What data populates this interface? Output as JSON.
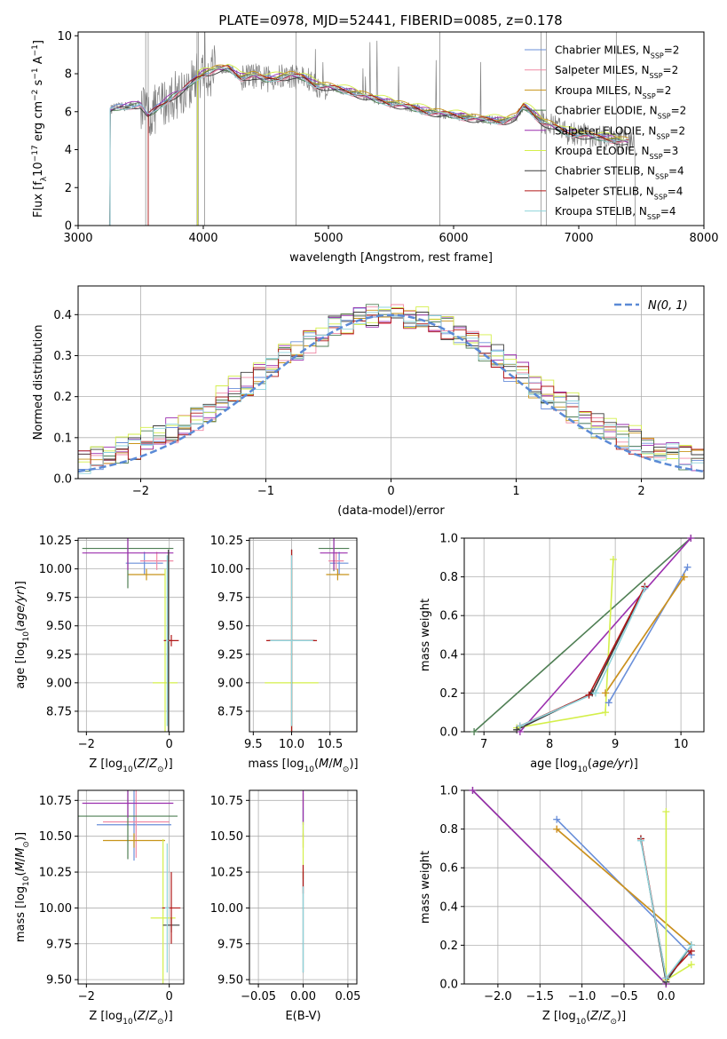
{
  "title": "PLATE=0978, MJD=52441, FIBERID=0085, z=0.178",
  "colors": {
    "chabrier_miles": "#6a8fd9",
    "salpeter_miles": "#f08aa6",
    "kroupa_miles": "#c8941a",
    "chabrier_elodie": "#4f7f54",
    "salpeter_elodie": "#9b2fae",
    "kroupa_elodie": "#d4ef4a",
    "chabrier_stelib": "#3a3a3a",
    "salpeter_stelib": "#b01818",
    "kroupa_stelib": "#8fd4dc",
    "miles_combo": "#f07a3a",
    "data": "#808080",
    "normal": "#5b8ad6",
    "grid": "#b0b0b0"
  },
  "legend": {
    "items": [
      {
        "name": "Chabrier MILES",
        "ssp": "2"
      },
      {
        "name": "Salpeter MILES",
        "ssp": "2"
      },
      {
        "name": "Kroupa MILES",
        "ssp": "2"
      },
      {
        "name": "Chabrier ELODIE",
        "ssp": "2"
      },
      {
        "name": "Salpeter ELODIE",
        "ssp": "2"
      },
      {
        "name": "Kroupa ELODIE",
        "ssp": "3"
      },
      {
        "name": "Chabrier STELIB",
        "ssp": "4"
      },
      {
        "name": "Salpeter STELIB",
        "ssp": "4"
      },
      {
        "name": "Kroupa STELIB",
        "ssp": "4"
      }
    ],
    "normal_label": "N(0, 1)"
  },
  "chart_data": [
    {
      "type": "line",
      "id": "spectrum",
      "xlabel": "wavelength [Angstrom, rest frame]",
      "ylabel": "Flux [fλ 10^-17 erg cm^-2 s^-1 A^-1]",
      "xlim": [
        3000,
        8000
      ],
      "ylim": [
        0,
        10.2
      ],
      "xticks": [
        3000,
        4000,
        5000,
        6000,
        7000,
        8000
      ],
      "yticks": [
        0,
        2,
        4,
        6,
        8,
        10
      ],
      "model_continuum": {
        "x": [
          3250,
          3300,
          3400,
          3500,
          3560,
          3650,
          3750,
          3850,
          3950,
          4000,
          4100,
          4200,
          4300,
          4400,
          4500,
          4600,
          4700,
          4800,
          4900,
          5000,
          5200,
          5400,
          5600,
          5800,
          6000,
          6200,
          6400,
          6500,
          6560,
          6620,
          6700,
          6800,
          6900,
          7000,
          7200,
          7400
        ],
        "y": [
          6.1,
          6.2,
          6.3,
          6.4,
          5.8,
          6.3,
          6.8,
          7.2,
          7.8,
          8.0,
          8.2,
          8.3,
          7.8,
          7.9,
          7.7,
          7.8,
          7.9,
          7.8,
          7.4,
          7.3,
          7.0,
          6.6,
          6.3,
          6.0,
          5.8,
          5.6,
          5.5,
          5.7,
          6.3,
          6.0,
          5.5,
          5.2,
          4.9,
          4.8,
          4.6,
          4.4
        ]
      }
    },
    {
      "type": "line",
      "id": "residuals",
      "xlabel": "(data-model)/error",
      "ylabel": "Normed distribution",
      "xlim": [
        -2.5,
        2.5
      ],
      "ylim": [
        0,
        0.47
      ],
      "xticks": [
        -2,
        -1,
        0,
        1,
        2
      ],
      "yticks": [
        0.0,
        0.1,
        0.2,
        0.3,
        0.4
      ],
      "bin_width": 0.1,
      "bin_start": -2.5
    },
    {
      "type": "scatter",
      "id": "age_vs_Z",
      "xlabel": "Z [log10(Z/Z⊙)]",
      "ylabel": "age [log10(age/yr)]",
      "xlim": [
        -2.2,
        0.35
      ],
      "ylim": [
        8.57,
        10.27
      ],
      "xticks": [
        -2,
        0
      ],
      "yticks": [
        8.75,
        9.0,
        9.25,
        9.5,
        9.75,
        10.0,
        10.25
      ],
      "points": [
        {
          "series": "Chabrier MILES",
          "x": -0.6,
          "y": 10.05,
          "xerr": 0.45,
          "yerr": 0.1
        },
        {
          "series": "Salpeter MILES",
          "x": -0.3,
          "y": 10.07,
          "xerr": 0.4,
          "yerr": 0.08
        },
        {
          "series": "Kroupa MILES",
          "x": -0.55,
          "y": 9.95,
          "xerr": 0.45,
          "yerr": 0.05
        },
        {
          "series": "Chabrier ELODIE",
          "x": -1.0,
          "y": 10.18,
          "xerr": 1.1,
          "yerr": 0.35
        },
        {
          "series": "Salpeter ELODIE",
          "x": -1.0,
          "y": 10.14,
          "xerr": 1.1,
          "yerr": 0.15
        },
        {
          "series": "Kroupa ELODIE",
          "x": -0.1,
          "y": 9.0,
          "xerr": 0.3,
          "yerr": 1.0
        },
        {
          "series": "Chabrier STELIB",
          "x": -0.02,
          "y": 9.37,
          "xerr": 0.05,
          "yerr": 0.8
        },
        {
          "series": "Salpeter STELIB",
          "x": 0.05,
          "y": 9.37,
          "xerr": 0.18,
          "yerr": 0.05
        },
        {
          "series": "Kroupa STELIB",
          "x": -0.05,
          "y": 9.37,
          "xerr": 0.03,
          "yerr": 0.75
        }
      ]
    },
    {
      "type": "scatter",
      "id": "age_vs_mass",
      "xlabel": "mass [log10(M/M⊙)]",
      "ylabel": "",
      "xlim": [
        9.45,
        10.85
      ],
      "ylim": [
        8.57,
        10.27
      ],
      "xticks": [
        9.5,
        10.0,
        10.5
      ],
      "yticks": [
        8.75,
        9.0,
        9.25,
        9.5,
        9.75,
        10.0,
        10.25
      ],
      "points": [
        {
          "series": "Chabrier MILES",
          "x": 10.62,
          "y": 10.05,
          "xerr": 0.12,
          "yerr": 0.1
        },
        {
          "series": "Salpeter MILES",
          "x": 10.58,
          "y": 10.07,
          "xerr": 0.1,
          "yerr": 0.08
        },
        {
          "series": "Kroupa MILES",
          "x": 10.6,
          "y": 9.95,
          "xerr": 0.15,
          "yerr": 0.05
        },
        {
          "series": "Chabrier ELODIE",
          "x": 10.55,
          "y": 10.18,
          "xerr": 0.2,
          "yerr": 0.2
        },
        {
          "series": "Salpeter ELODIE",
          "x": 10.55,
          "y": 10.14,
          "xerr": 0.18,
          "yerr": 0.15
        },
        {
          "series": "Kroupa ELODIE",
          "x": 10.0,
          "y": 9.0,
          "xerr": 0.35,
          "yerr": 1.0
        },
        {
          "series": "Chabrier STELIB",
          "x": 10.0,
          "y": 9.37,
          "xerr": 0.3,
          "yerr": 0.8
        },
        {
          "series": "Salpeter STELIB",
          "x": 10.0,
          "y": 9.37,
          "xerr": 0.33,
          "yerr": 0.8
        },
        {
          "series": "Kroupa STELIB",
          "x": 10.0,
          "y": 9.37,
          "xerr": 0.28,
          "yerr": 0.75
        }
      ]
    },
    {
      "type": "line",
      "id": "weight_vs_age",
      "xlabel": "age [log10(age/yr)]",
      "ylabel": "mass weight",
      "xlim": [
        6.7,
        10.35
      ],
      "ylim": [
        0,
        1.0
      ],
      "xticks": [
        7,
        8,
        9,
        10
      ],
      "yticks": [
        0.0,
        0.2,
        0.4,
        0.6,
        0.8,
        1.0
      ],
      "series": [
        {
          "name": "Chabrier MILES",
          "x": [
            8.9,
            10.1
          ],
          "y": [
            0.15,
            0.85
          ]
        },
        {
          "name": "Salpeter MILES",
          "x": [
            8.85,
            10.05
          ],
          "y": [
            0.2,
            0.8
          ]
        },
        {
          "name": "Kroupa MILES",
          "x": [
            8.85,
            10.05
          ],
          "y": [
            0.2,
            0.8
          ]
        },
        {
          "name": "Chabrier ELODIE",
          "x": [
            6.85,
            10.15
          ],
          "y": [
            0.0,
            1.0
          ]
        },
        {
          "name": "Salpeter ELODIE",
          "x": [
            7.55,
            10.15
          ],
          "y": [
            0.0,
            1.0
          ]
        },
        {
          "name": "Kroupa ELODIE",
          "x": [
            7.5,
            8.85,
            8.97
          ],
          "y": [
            0.02,
            0.1,
            0.89
          ]
        },
        {
          "name": "Chabrier STELIB",
          "x": [
            7.5,
            8.65,
            9.45
          ],
          "y": [
            0.01,
            0.2,
            0.75
          ]
        },
        {
          "name": "Salpeter STELIB",
          "x": [
            7.55,
            8.6,
            9.45
          ],
          "y": [
            0.03,
            0.19,
            0.75
          ]
        },
        {
          "name": "Kroupa STELIB",
          "x": [
            7.55,
            8.7,
            9.45
          ],
          "y": [
            0.03,
            0.2,
            0.74
          ]
        }
      ]
    },
    {
      "type": "scatter",
      "id": "mass_vs_Z",
      "xlabel": "Z [log10(Z/Z⊙)]",
      "ylabel": "mass [log10(M/M⊙)]",
      "xlim": [
        -2.2,
        0.35
      ],
      "ylim": [
        9.47,
        10.82
      ],
      "xticks": [
        -2,
        0
      ],
      "yticks": [
        9.5,
        9.75,
        10.0,
        10.25,
        10.5,
        10.75
      ],
      "points": [
        {
          "series": "Chabrier MILES",
          "x": -0.85,
          "y": 10.58,
          "xerr": 0.9,
          "yerr": 0.25
        },
        {
          "series": "Salpeter MILES",
          "x": -0.8,
          "y": 10.6,
          "xerr": 0.8,
          "yerr": 0.25
        },
        {
          "series": "Kroupa MILES",
          "x": -0.85,
          "y": 10.47,
          "xerr": 0.75,
          "yerr": 0.05
        },
        {
          "series": "Chabrier ELODIE",
          "x": -1.0,
          "y": 10.64,
          "xerr": 1.2,
          "yerr": 0.3
        },
        {
          "series": "Salpeter ELODIE",
          "x": -1.0,
          "y": 10.73,
          "xerr": 1.1,
          "yerr": 0.1
        },
        {
          "series": "Kroupa ELODIE",
          "x": -0.15,
          "y": 9.93,
          "xerr": 0.3,
          "yerr": 0.55
        },
        {
          "series": "Chabrier STELIB",
          "x": 0.05,
          "y": 9.88,
          "xerr": 0.2,
          "yerr": 0.05
        },
        {
          "series": "Salpeter STELIB",
          "x": 0.05,
          "y": 10.0,
          "xerr": 0.22,
          "yerr": 0.25
        },
        {
          "series": "Kroupa STELIB",
          "x": -0.05,
          "y": 10.0,
          "xerr": 0.05,
          "yerr": 0.45
        }
      ]
    },
    {
      "type": "scatter",
      "id": "mass_vs_ebv",
      "xlabel": "E(B-V)",
      "ylabel": "",
      "xlim": [
        -0.06,
        0.06
      ],
      "ylim": [
        9.47,
        10.82
      ],
      "xticks": [
        -0.05,
        0.0,
        0.05
      ],
      "yticks": [
        9.5,
        9.75,
        10.0,
        10.25,
        10.5,
        10.75
      ],
      "points": [
        {
          "series": "Chabrier MILES",
          "x": 0.0,
          "y": 10.6,
          "xerr": 0.0,
          "yerr": 0.1
        },
        {
          "series": "Salpeter MILES",
          "x": 0.0,
          "y": 10.78,
          "xerr": 0.0,
          "yerr": 0.08
        },
        {
          "series": "Kroupa MILES",
          "x": 0.0,
          "y": 10.47,
          "xerr": 0.0,
          "yerr": 0.05
        },
        {
          "series": "Chabrier ELODIE",
          "x": 0.0,
          "y": 10.7,
          "xerr": 0.0,
          "yerr": 0.1
        },
        {
          "series": "Salpeter ELODIE",
          "x": 0.0,
          "y": 10.7,
          "xerr": 0.0,
          "yerr": 0.12
        },
        {
          "series": "Kroupa ELODIE",
          "x": 0.0,
          "y": 10.4,
          "xerr": 0.0,
          "yerr": 0.2
        },
        {
          "series": "Chabrier STELIB",
          "x": 0.0,
          "y": 9.9,
          "xerr": 0.0,
          "yerr": 0.35
        },
        {
          "series": "Salpeter STELIB",
          "x": 0.0,
          "y": 10.2,
          "xerr": 0.0,
          "yerr": 0.1
        },
        {
          "series": "Kroupa STELIB",
          "x": 0.0,
          "y": 9.85,
          "xerr": 0.0,
          "yerr": 0.3
        }
      ]
    },
    {
      "type": "line",
      "id": "weight_vs_Z",
      "xlabel": "Z [log10(Z/Z⊙)]",
      "ylabel": "mass weight",
      "xlim": [
        -2.4,
        0.45
      ],
      "ylim": [
        0,
        1.0
      ],
      "xticks": [
        -2.0,
        -1.5,
        -1.0,
        -0.5,
        0.0
      ],
      "yticks": [
        0.0,
        0.2,
        0.4,
        0.6,
        0.8,
        1.0
      ],
      "series": [
        {
          "name": "Chabrier MILES",
          "x": [
            -1.3,
            0.3
          ],
          "y": [
            0.85,
            0.15
          ]
        },
        {
          "name": "Salpeter MILES",
          "x": [
            -1.3,
            0.3
          ],
          "y": [
            0.8,
            0.2
          ]
        },
        {
          "name": "Kroupa MILES",
          "x": [
            -1.3,
            0.3
          ],
          "y": [
            0.8,
            0.2
          ]
        },
        {
          "name": "Chabrier ELODIE",
          "x": [
            -2.3,
            0.0
          ],
          "y": [
            1.0,
            0.0
          ]
        },
        {
          "name": "Salpeter ELODIE",
          "x": [
            -2.3,
            0.0
          ],
          "y": [
            1.0,
            0.0
          ]
        },
        {
          "name": "Kroupa ELODIE",
          "x": [
            0.0,
            0.0,
            0.3
          ],
          "y": [
            0.89,
            0.02,
            0.1
          ]
        },
        {
          "name": "Chabrier STELIB",
          "x": [
            -0.3,
            0.0,
            0.3
          ],
          "y": [
            0.75,
            0.01,
            0.2
          ]
        },
        {
          "name": "Salpeter STELIB",
          "x": [
            -0.3,
            0.0,
            0.3
          ],
          "y": [
            0.75,
            0.03,
            0.17
          ]
        },
        {
          "name": "Kroupa STELIB",
          "x": [
            -0.3,
            0.0,
            0.3
          ],
          "y": [
            0.74,
            0.03,
            0.2
          ]
        }
      ]
    }
  ]
}
